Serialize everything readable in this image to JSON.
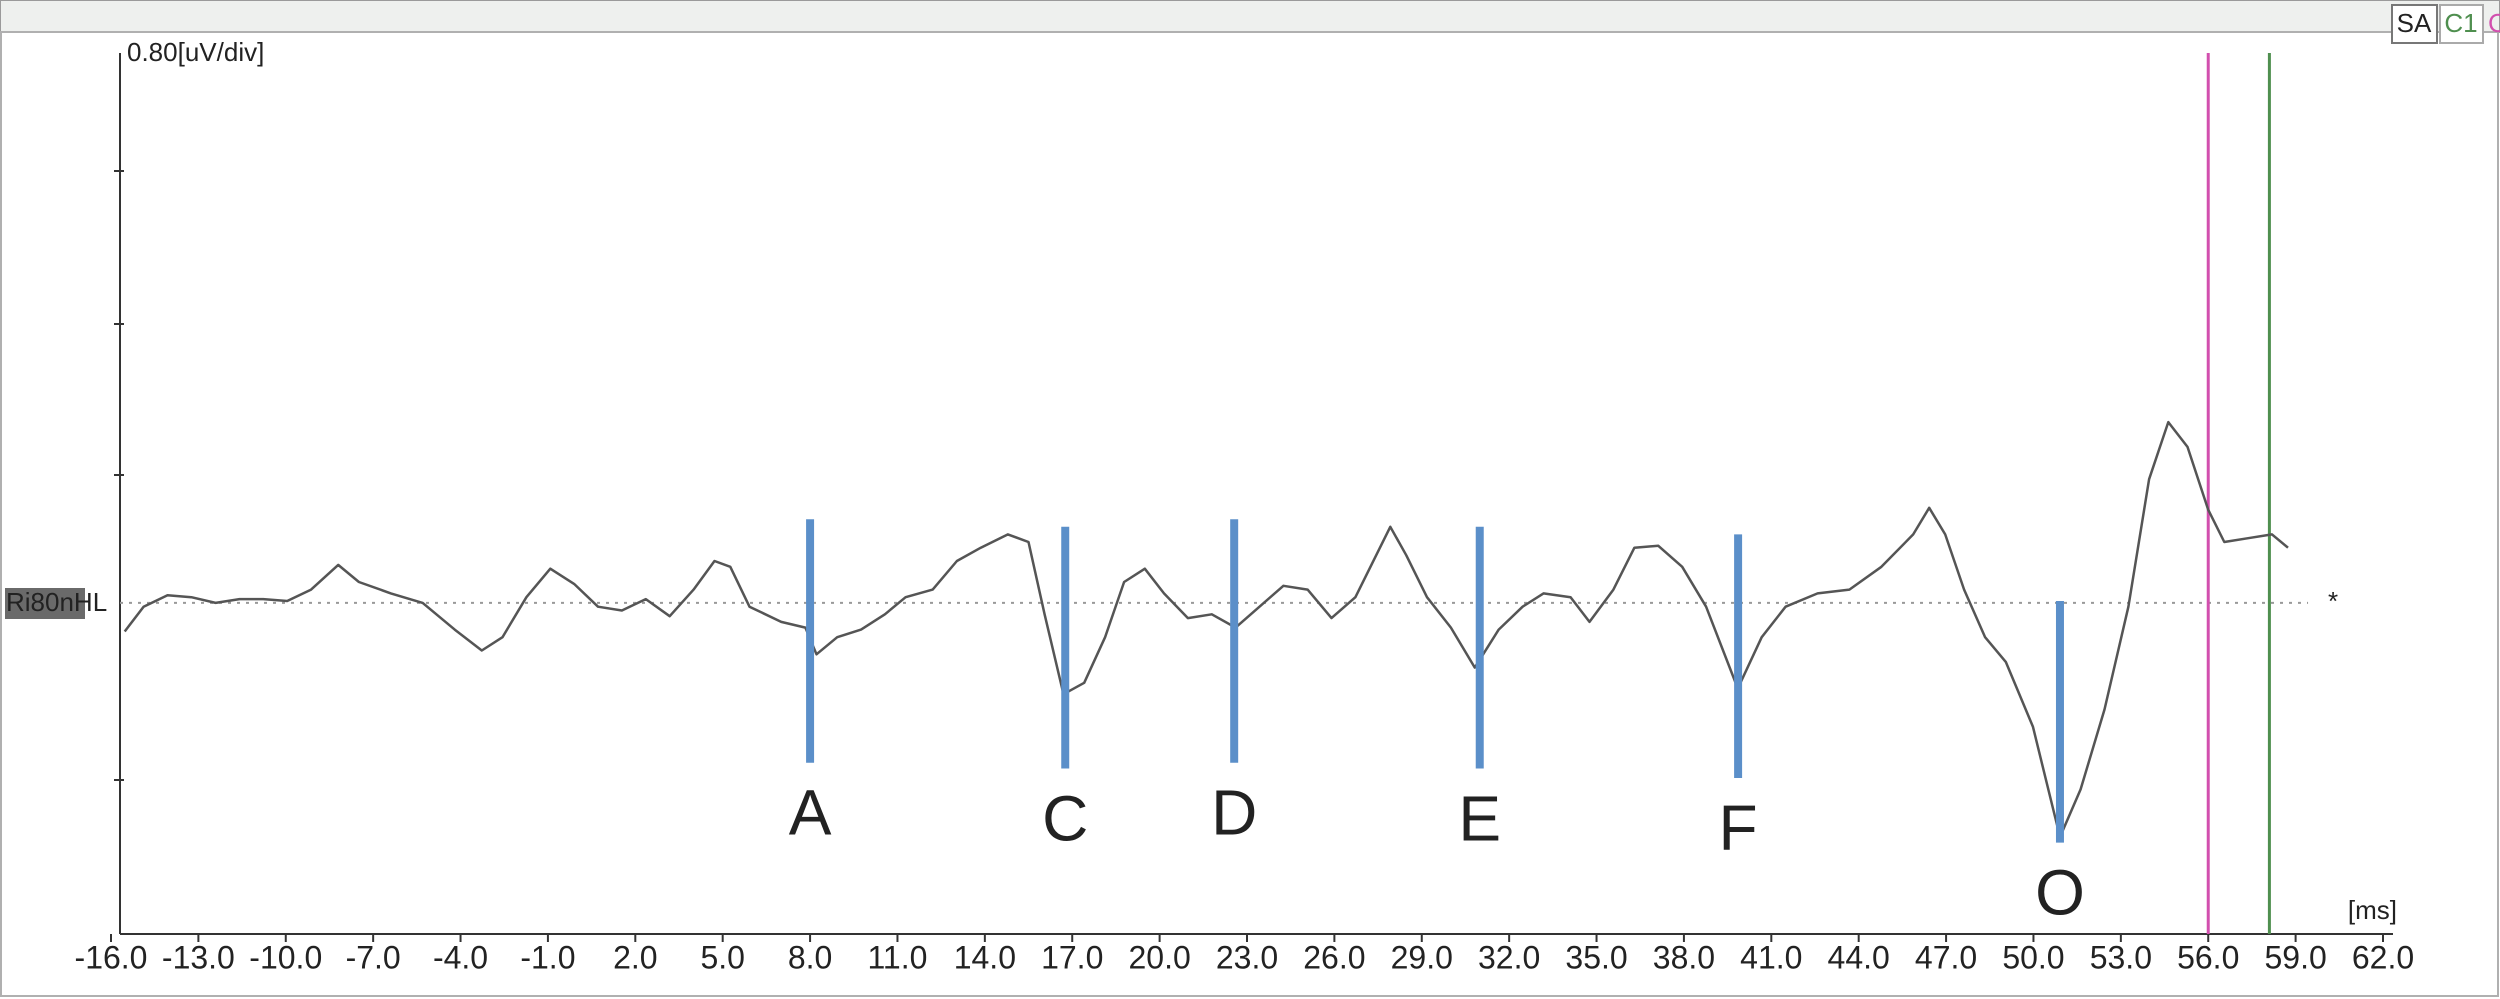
{
  "toolbar": [
    "SA",
    "C1",
    "C"
  ],
  "chart_data": {
    "type": "line",
    "y_axis_label": "0.80[uV/div]",
    "x_axis_label": "[ms]",
    "channel_label": "Ri80nHL",
    "baseline_marker": "*",
    "xlim": [
      -16,
      62
    ],
    "ylim": [
      -1.74,
      2.89
    ],
    "xticks": [
      {
        "value": -16,
        "label": "-16.0"
      },
      {
        "value": -13,
        "label": "-13.0"
      },
      {
        "value": -10,
        "label": "-10.0"
      },
      {
        "value": -7,
        "label": "-7.0"
      },
      {
        "value": -4,
        "label": "-4.0"
      },
      {
        "value": -1,
        "label": "-1.0"
      },
      {
        "value": 2,
        "label": "2.0"
      },
      {
        "value": 5,
        "label": "5.0"
      },
      {
        "value": 8,
        "label": "8.0"
      },
      {
        "value": 11,
        "label": "11.0"
      },
      {
        "value": 14,
        "label": "14.0"
      },
      {
        "value": 17,
        "label": "17.0"
      },
      {
        "value": 20,
        "label": "20.0"
      },
      {
        "value": 23,
        "label": "23.0"
      },
      {
        "value": 26,
        "label": "26.0"
      },
      {
        "value": 29,
        "label": "29.0"
      },
      {
        "value": 32,
        "label": "32.0"
      },
      {
        "value": 35,
        "label": "35.0"
      },
      {
        "value": 38,
        "label": "38.0"
      },
      {
        "value": 41,
        "label": "41.0"
      },
      {
        "value": 44,
        "label": "44.0"
      },
      {
        "value": 47,
        "label": "47.0"
      },
      {
        "value": 50,
        "label": "50.0"
      },
      {
        "value": 53,
        "label": "53.0"
      },
      {
        "value": 56,
        "label": "56.0"
      },
      {
        "value": 59,
        "label": "59.0"
      },
      {
        "value": 62,
        "label": "62.0"
      }
    ],
    "x": [
      -15.53,
      -14.88,
      -14.06,
      -13.24,
      -12.41,
      -11.59,
      -10.77,
      -9.95,
      -9.13,
      -8.2,
      -7.49,
      -6.39,
      -5.3,
      -4.2,
      -3.27,
      -2.56,
      -1.74,
      -0.92,
      -0.1,
      0.72,
      1.54,
      2.36,
      3.18,
      4.0,
      4.72,
      5.26,
      5.92,
      7.01,
      7.84,
      8.22,
      8.93,
      9.75,
      10.57,
      11.28,
      12.21,
      13.04,
      13.86,
      14.79,
      15.5,
      16.05,
      16.7,
      17.41,
      18.13,
      18.78,
      19.49,
      20.15,
      20.97,
      21.79,
      22.61,
      23.43,
      24.25,
      25.08,
      25.9,
      26.72,
      27.37,
      27.92,
      28.47,
      29.18,
      30.0,
      30.82,
      31.64,
      32.46,
      33.18,
      34.11,
      34.76,
      35.58,
      36.3,
      37.12,
      37.94,
      38.76,
      39.85,
      40.67,
      41.49,
      42.59,
      43.68,
      44.78,
      45.87,
      46.42,
      46.97,
      47.62,
      48.34,
      49.05,
      49.98,
      50.91,
      51.62,
      52.44,
      53.26,
      53.97,
      54.63,
      55.29,
      56.0,
      56.55,
      57.37,
      58.19,
      58.74
    ],
    "series": [
      {
        "color": "#555555",
        "values": [
          -0.15,
          -0.02,
          0.04,
          0.03,
          0,
          0.02,
          0.02,
          0.01,
          0.07,
          0.2,
          0.11,
          0.05,
          0,
          -0.14,
          -0.25,
          -0.18,
          0.03,
          0.18,
          0.1,
          -0.02,
          -0.04,
          0.02,
          -0.07,
          0.07,
          0.22,
          0.19,
          -0.02,
          -0.1,
          -0.13,
          -0.27,
          -0.18,
          -0.14,
          -0.06,
          0.03,
          0.07,
          0.22,
          0.29,
          0.36,
          0.32,
          -0.06,
          -0.48,
          -0.42,
          -0.18,
          0.11,
          0.18,
          0.05,
          -0.08,
          -0.06,
          -0.13,
          -0.02,
          0.09,
          0.07,
          -0.08,
          0.03,
          0.23,
          0.4,
          0.25,
          0.03,
          -0.13,
          -0.34,
          -0.14,
          -0.02,
          0.05,
          0.03,
          -0.1,
          0.07,
          0.29,
          0.3,
          0.19,
          -0.02,
          -0.45,
          -0.18,
          -0.02,
          0.05,
          0.07,
          0.19,
          0.36,
          0.5,
          0.36,
          0.07,
          -0.18,
          -0.31,
          -0.65,
          -1.23,
          -0.98,
          -0.56,
          -0.02,
          0.65,
          0.95,
          0.82,
          0.49,
          0.32,
          0.34,
          0.36,
          0.29
        ]
      }
    ],
    "markers": [
      {
        "label": "A",
        "x": 8.0,
        "top": 0.44,
        "bottom": -0.84
      },
      {
        "label": "C",
        "x": 16.76,
        "top": 0.4,
        "bottom": -0.87
      },
      {
        "label": "D",
        "x": 22.56,
        "top": 0.44,
        "bottom": -0.84
      },
      {
        "label": "E",
        "x": 30.99,
        "top": 0.4,
        "bottom": -0.87
      },
      {
        "label": "F",
        "x": 39.86,
        "top": 0.36,
        "bottom": -0.92
      },
      {
        "label": "O",
        "x": 50.91,
        "top": 0.01,
        "bottom": -1.26
      }
    ],
    "marker_color": "#5b8fc9",
    "cursors": [
      {
        "x": 56.0,
        "color": "#d24fae"
      },
      {
        "x": 58.1,
        "color": "#4f8f4f"
      }
    ]
  }
}
